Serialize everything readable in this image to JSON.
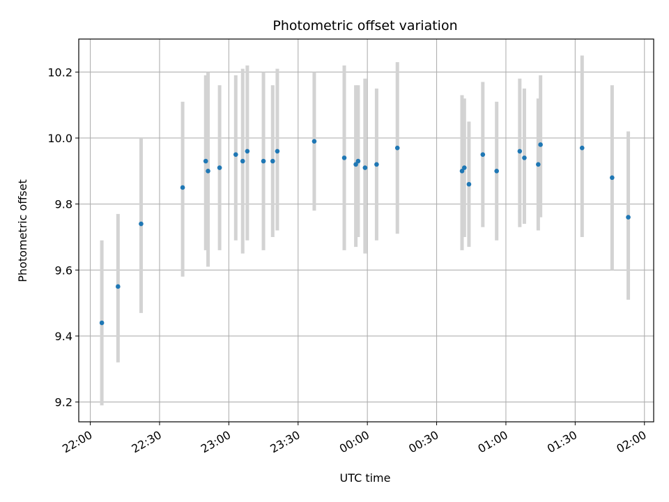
{
  "chart_data": {
    "type": "scatter",
    "title": "Photometric offset variation",
    "xlabel": "UTC time",
    "ylabel": "Photometric offset",
    "grid": true,
    "xlim": [
      "21:55",
      "02:04"
    ],
    "ylim": [
      9.14,
      10.3
    ],
    "x_ticks": [
      "22:00",
      "22:30",
      "23:00",
      "23:30",
      "00:00",
      "00:30",
      "01:00",
      "01:30",
      "02:00"
    ],
    "y_ticks": [
      9.2,
      9.4,
      9.6,
      9.8,
      10.0,
      10.2
    ],
    "y_tick_labels": [
      "9.2",
      "9.4",
      "9.6",
      "9.8",
      "10.0",
      "10.2"
    ],
    "marker_color": "#1f77b4",
    "errorbar_color": "#d3d3d3",
    "points": [
      {
        "x": "22:05",
        "y": 9.44,
        "ylo": 9.19,
        "yhi": 9.69
      },
      {
        "x": "22:12",
        "y": 9.55,
        "ylo": 9.32,
        "yhi": 9.77
      },
      {
        "x": "22:22",
        "y": 9.74,
        "ylo": 9.47,
        "yhi": 10.0
      },
      {
        "x": "22:40",
        "y": 9.85,
        "ylo": 9.58,
        "yhi": 10.11
      },
      {
        "x": "22:50",
        "y": 9.93,
        "ylo": 9.66,
        "yhi": 10.19
      },
      {
        "x": "22:51",
        "y": 9.9,
        "ylo": 9.61,
        "yhi": 10.2
      },
      {
        "x": "22:56",
        "y": 9.91,
        "ylo": 9.66,
        "yhi": 10.16
      },
      {
        "x": "23:03",
        "y": 9.95,
        "ylo": 9.69,
        "yhi": 10.19
      },
      {
        "x": "23:06",
        "y": 9.93,
        "ylo": 9.65,
        "yhi": 10.21
      },
      {
        "x": "23:08",
        "y": 9.96,
        "ylo": 9.69,
        "yhi": 10.22
      },
      {
        "x": "23:15",
        "y": 9.93,
        "ylo": 9.66,
        "yhi": 10.2
      },
      {
        "x": "23:19",
        "y": 9.93,
        "ylo": 9.7,
        "yhi": 10.16
      },
      {
        "x": "23:21",
        "y": 9.96,
        "ylo": 9.72,
        "yhi": 10.21
      },
      {
        "x": "23:37",
        "y": 9.99,
        "ylo": 9.78,
        "yhi": 10.2
      },
      {
        "x": "23:50",
        "y": 9.94,
        "ylo": 9.66,
        "yhi": 10.22
      },
      {
        "x": "23:55",
        "y": 9.92,
        "ylo": 9.67,
        "yhi": 10.16
      },
      {
        "x": "23:56",
        "y": 9.93,
        "ylo": 9.7,
        "yhi": 10.16
      },
      {
        "x": "23:59",
        "y": 9.91,
        "ylo": 9.65,
        "yhi": 10.18
      },
      {
        "x": "00:04",
        "y": 9.92,
        "ylo": 9.69,
        "yhi": 10.15
      },
      {
        "x": "00:13",
        "y": 9.97,
        "ylo": 9.71,
        "yhi": 10.23
      },
      {
        "x": "00:41",
        "y": 9.9,
        "ylo": 9.66,
        "yhi": 10.13
      },
      {
        "x": "00:42",
        "y": 9.91,
        "ylo": 9.7,
        "yhi": 10.12
      },
      {
        "x": "00:44",
        "y": 9.86,
        "ylo": 9.67,
        "yhi": 10.05
      },
      {
        "x": "00:50",
        "y": 9.95,
        "ylo": 9.73,
        "yhi": 10.17
      },
      {
        "x": "00:56",
        "y": 9.9,
        "ylo": 9.69,
        "yhi": 10.11
      },
      {
        "x": "01:06",
        "y": 9.96,
        "ylo": 9.73,
        "yhi": 10.18
      },
      {
        "x": "01:08",
        "y": 9.94,
        "ylo": 9.74,
        "yhi": 10.15
      },
      {
        "x": "01:14",
        "y": 9.92,
        "ylo": 9.72,
        "yhi": 10.12
      },
      {
        "x": "01:15",
        "y": 9.98,
        "ylo": 9.76,
        "yhi": 10.19
      },
      {
        "x": "01:33",
        "y": 9.97,
        "ylo": 9.7,
        "yhi": 10.25
      },
      {
        "x": "01:46",
        "y": 9.88,
        "ylo": 9.6,
        "yhi": 10.16
      },
      {
        "x": "01:53",
        "y": 9.76,
        "ylo": 9.51,
        "yhi": 10.02
      }
    ]
  }
}
